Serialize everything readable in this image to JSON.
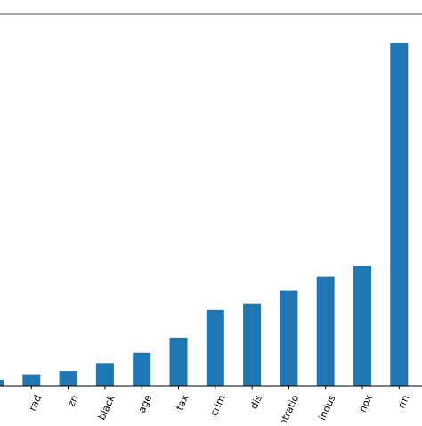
{
  "chart_data": {
    "type": "bar",
    "categories": [
      "",
      "rad",
      "zn",
      "black",
      "age",
      "tax",
      "crim",
      "dis",
      "ptratio",
      "indus",
      "nox",
      "rm"
    ],
    "values": [
      0.4,
      0.7,
      0.95,
      1.45,
      2.1,
      3.05,
      4.8,
      5.2,
      6.05,
      6.9,
      7.6,
      21.7
    ],
    "ylim": [
      0,
      23.5
    ],
    "bar_color": "#1f77b4",
    "axis_color": "#000000",
    "grid": false,
    "title": "",
    "xlabel": "",
    "ylabel": ""
  }
}
